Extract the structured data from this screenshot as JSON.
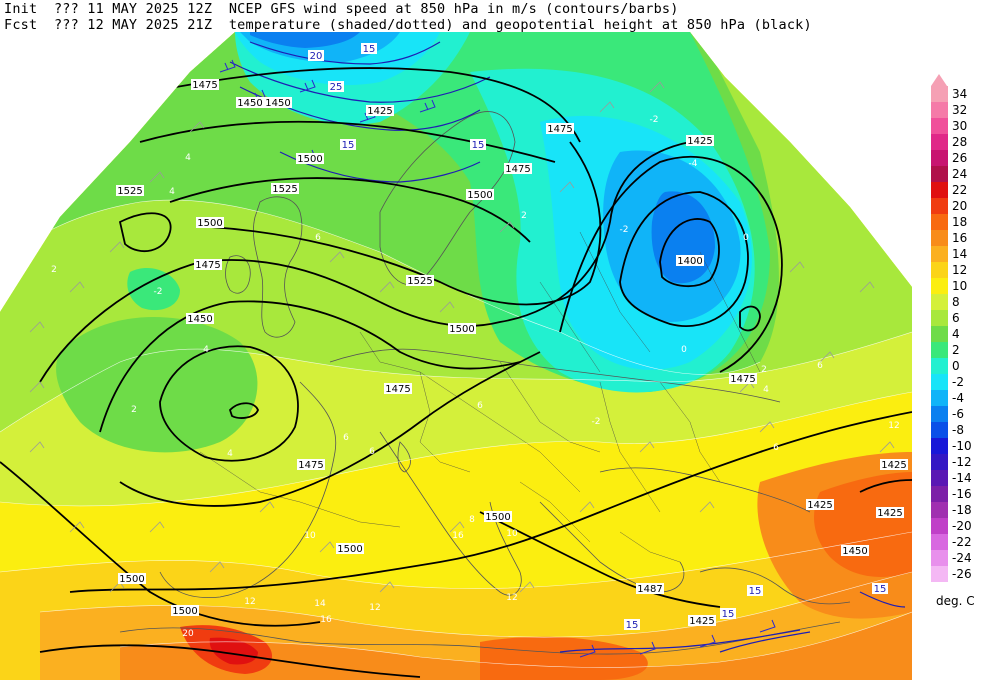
{
  "header": {
    "line1": {
      "run_label": "Init",
      "run_value": "??? 11 MAY 2025 12Z",
      "description": "NCEP GFS wind speed at 850 hPa in m/s (contours/barbs)"
    },
    "line2": {
      "run_label": "Fcst",
      "run_value": "??? 12 MAY 2025 21Z",
      "description": "temperature (shaded/dotted) and geopotential height at 850 hPa (black)"
    }
  },
  "colorbar": {
    "units": "deg. C",
    "levels": [
      {
        "label": "34",
        "color": "#f5a0b4"
      },
      {
        "label": "32",
        "color": "#f57aa8"
      },
      {
        "label": "30",
        "color": "#f0509a"
      },
      {
        "label": "28",
        "color": "#e02888"
      },
      {
        "label": "26",
        "color": "#c81470"
      },
      {
        "label": "24",
        "color": "#b0104a"
      },
      {
        "label": "22",
        "color": "#e01010"
      },
      {
        "label": "20",
        "color": "#f03c10"
      },
      {
        "label": "18",
        "color": "#f86a10"
      },
      {
        "label": "16",
        "color": "#f88c1a"
      },
      {
        "label": "14",
        "color": "#fbb020"
      },
      {
        "label": "12",
        "color": "#fbd418"
      },
      {
        "label": "10",
        "color": "#fbee10"
      },
      {
        "label": "8",
        "color": "#d4f03a"
      },
      {
        "label": "6",
        "color": "#a8e83c"
      },
      {
        "label": "4",
        "color": "#6edc48"
      },
      {
        "label": "2",
        "color": "#3ae87a"
      },
      {
        "label": "0",
        "color": "#22f0d0"
      },
      {
        "label": "-2",
        "color": "#18e4f8"
      },
      {
        "label": "-4",
        "color": "#10b4f8"
      },
      {
        "label": "-6",
        "color": "#0a80f0"
      },
      {
        "label": "-8",
        "color": "#0a50e8"
      },
      {
        "label": "-10",
        "color": "#1818d8"
      },
      {
        "label": "-12",
        "color": "#3418c4"
      },
      {
        "label": "-14",
        "color": "#5a18b4"
      },
      {
        "label": "-16",
        "color": "#7c20a8"
      },
      {
        "label": "-18",
        "color": "#a030b0"
      },
      {
        "label": "-20",
        "color": "#c040c8"
      },
      {
        "label": "-22",
        "color": "#d868e0"
      },
      {
        "label": "-24",
        "color": "#e890ec"
      },
      {
        "label": "-26",
        "color": "#f4b8f4"
      }
    ]
  },
  "map": {
    "height_contour_labels": [
      {
        "label": "1475"
      },
      {
        "label": "1450"
      },
      {
        "label": "1425"
      },
      {
        "label": "1450"
      },
      {
        "label": "1475"
      },
      {
        "label": "1500"
      },
      {
        "label": "1525"
      },
      {
        "label": "1525"
      },
      {
        "label": "1500"
      },
      {
        "label": "1500"
      },
      {
        "label": "1475"
      },
      {
        "label": "1450"
      },
      {
        "label": "1525"
      },
      {
        "label": "1500"
      },
      {
        "label": "1425"
      },
      {
        "label": "1400"
      },
      {
        "label": "1475"
      },
      {
        "label": "1475"
      },
      {
        "label": "1475"
      },
      {
        "label": "1500"
      },
      {
        "label": "1500"
      },
      {
        "label": "1500"
      },
      {
        "label": "1487"
      },
      {
        "label": "1425"
      },
      {
        "label": "1425"
      },
      {
        "label": "1425"
      },
      {
        "label": "1425"
      },
      {
        "label": "1450"
      },
      {
        "label": "1475"
      },
      {
        "label": "1500"
      }
    ],
    "temperature_labels": [
      {
        "label": "4"
      },
      {
        "label": "4"
      },
      {
        "label": "2"
      },
      {
        "label": "6"
      },
      {
        "label": "-2"
      },
      {
        "label": "4"
      },
      {
        "label": "2"
      },
      {
        "label": "4"
      },
      {
        "label": "6"
      },
      {
        "label": "6"
      },
      {
        "label": "6"
      },
      {
        "label": "8"
      },
      {
        "label": "10"
      },
      {
        "label": "12"
      },
      {
        "label": "14"
      },
      {
        "label": "16"
      },
      {
        "label": "20"
      },
      {
        "label": "12"
      },
      {
        "label": "12"
      },
      {
        "label": "-2"
      },
      {
        "label": "-4"
      },
      {
        "label": "-2"
      },
      {
        "label": "0"
      },
      {
        "label": "2"
      },
      {
        "label": "0"
      },
      {
        "label": "2"
      },
      {
        "label": "-2"
      },
      {
        "label": "4"
      },
      {
        "label": "6"
      },
      {
        "label": "6"
      },
      {
        "label": "12"
      },
      {
        "label": "10"
      },
      {
        "label": "16"
      }
    ],
    "wind_speed_labels": [
      {
        "label": "20"
      },
      {
        "label": "15"
      },
      {
        "label": "25"
      },
      {
        "label": "15"
      },
      {
        "label": "15"
      },
      {
        "label": "15"
      },
      {
        "label": "15"
      },
      {
        "label": "15"
      },
      {
        "label": "15"
      }
    ]
  }
}
